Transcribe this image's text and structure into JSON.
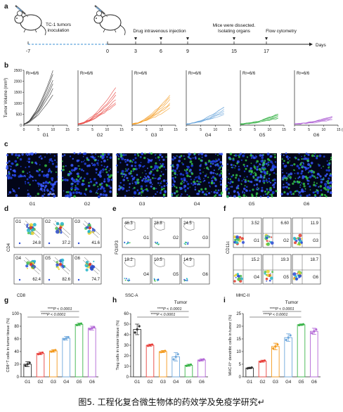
{
  "figure": {
    "panel_letters": [
      "a",
      "b",
      "c",
      "d",
      "e",
      "f",
      "g",
      "h",
      "i"
    ],
    "caption": "图5. 工程化复合微生物体的药效学及免疫学研究↵"
  },
  "timeline": {
    "left_label": "TC-1 tumors\ninoculation",
    "events": [
      {
        "day": "-7"
      },
      {
        "day": "0"
      },
      {
        "day": "3"
      },
      {
        "day": "6"
      },
      {
        "day": "9"
      },
      {
        "day": "15"
      },
      {
        "day": "17"
      }
    ],
    "label_drug": "Drug intravenous injection",
    "label_dissect": "Mice were dissected.\nIsolating organs",
    "label_flow": "Flow cytometry",
    "axis_unit": "Days"
  },
  "growth": {
    "y_label": "Tumor Volume (mm³)",
    "y_ticks": [
      "0",
      "500",
      "1000",
      "1500",
      "2000",
      "2500"
    ],
    "x_ticks": [
      "0",
      "5",
      "10",
      "15"
    ],
    "x_unit": "15 (d)",
    "rr_text": "Rr=6/6",
    "groups": [
      {
        "name": "G1",
        "color": "#333333"
      },
      {
        "name": "G2",
        "color": "#e8413c"
      },
      {
        "name": "G3",
        "color": "#f39a1e"
      },
      {
        "name": "G4",
        "color": "#6fa8dc"
      },
      {
        "name": "G5",
        "color": "#3cb44b"
      },
      {
        "name": "G6",
        "color": "#b266d6"
      }
    ]
  },
  "micro": {
    "labels": [
      "G1",
      "G2",
      "G3",
      "G4",
      "G5",
      "G6"
    ]
  },
  "flow_d": {
    "y_label": "CD4",
    "x_label": "CD8",
    "tiles": [
      {
        "g": "G1",
        "v": "24.8"
      },
      {
        "g": "G2",
        "v": "37.2"
      },
      {
        "g": "G3",
        "v": "41.6"
      },
      {
        "g": "G4",
        "v": "62.4"
      },
      {
        "g": "G5",
        "v": "82.6"
      },
      {
        "g": "G6",
        "v": "74.7"
      }
    ]
  },
  "flow_e": {
    "y_label": "FOXP3",
    "x_label": "SSC-A",
    "bottom_label": "Tumor",
    "tiles": [
      {
        "g": "G1",
        "v": "46.3"
      },
      {
        "g": "G2",
        "v": "28.8"
      },
      {
        "g": "G3",
        "v": "24.5"
      },
      {
        "g": "G4",
        "v": "19.2"
      },
      {
        "g": "G5",
        "v": "10.5"
      },
      {
        "g": "G6",
        "v": "14.9"
      }
    ]
  },
  "flow_f": {
    "y_label": "CD11c",
    "x_label": "MHC-II",
    "bottom_label": "Tumor",
    "tiles": [
      {
        "g": "G1",
        "v": "3.52"
      },
      {
        "g": "G2",
        "v": "6.60"
      },
      {
        "g": "G3",
        "v": "11.9"
      },
      {
        "g": "G4",
        "v": "15.2"
      },
      {
        "g": "G5",
        "v": "19.3"
      },
      {
        "g": "G6",
        "v": "18.7"
      }
    ]
  },
  "chart_data": [
    {
      "type": "bar",
      "panel": "g",
      "ylabel": "CD8⁺T cells in tumor tissue (%)",
      "categories": [
        "G1",
        "G2",
        "G3",
        "G4",
        "G5",
        "G6"
      ],
      "values": [
        20,
        37,
        41,
        61,
        83,
        77
      ],
      "errors": [
        4,
        2,
        2,
        3,
        2,
        3
      ],
      "colors": [
        "#333333",
        "#e8413c",
        "#f39a1e",
        "#6fa8dc",
        "#3cb44b",
        "#b266d6"
      ],
      "ylim": [
        0,
        100
      ],
      "yticks": [
        "0",
        "20",
        "40",
        "60",
        "80",
        "100"
      ],
      "annotations": [
        "****P < 0.0001",
        "****P < 0.0001"
      ]
    },
    {
      "type": "bar",
      "panel": "h",
      "ylabel": "Treg cells in tumor tissue (%)",
      "categories": [
        "G1",
        "G2",
        "G3",
        "G4",
        "G5",
        "G6"
      ],
      "values": [
        45,
        30,
        24,
        19,
        11,
        16
      ],
      "errors": [
        5,
        1,
        1,
        4,
        1,
        1
      ],
      "colors": [
        "#333333",
        "#e8413c",
        "#f39a1e",
        "#6fa8dc",
        "#3cb44b",
        "#b266d6"
      ],
      "ylim": [
        0,
        60
      ],
      "yticks": [
        "0",
        "10",
        "20",
        "30",
        "40",
        "50",
        "60"
      ],
      "annotations": [
        "****P < 0.0001",
        "****P < 0.0001"
      ]
    },
    {
      "type": "bar",
      "panel": "i",
      "ylabel": "MHC-II⁺ dendritic cells in tumor (%)",
      "categories": [
        "G1",
        "G2",
        "G3",
        "G4",
        "G5",
        "G6"
      ],
      "values": [
        3.5,
        6.2,
        12,
        15.5,
        20.6,
        18
      ],
      "errors": [
        0.3,
        0.4,
        1.3,
        1.5,
        0.3,
        1.2
      ],
      "colors": [
        "#333333",
        "#e8413c",
        "#f39a1e",
        "#6fa8dc",
        "#3cb44b",
        "#b266d6"
      ],
      "ylim": [
        0,
        25
      ],
      "yticks": [
        "0",
        "5",
        "10",
        "15",
        "20",
        "25"
      ],
      "annotations": [
        "****P < 0.0001",
        "****P < 0.0001"
      ]
    }
  ]
}
